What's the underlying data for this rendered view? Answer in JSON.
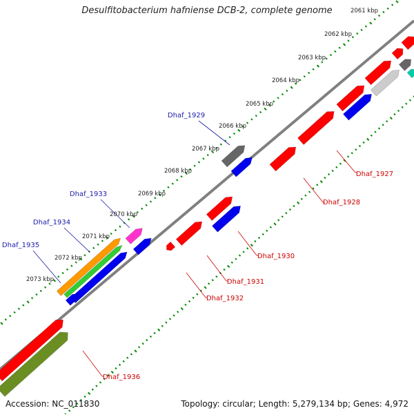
{
  "title": "Desulfitobacterium hafniense DCB-2, complete genome",
  "footer": {
    "accession": "Accession: NC_011830",
    "summary": "Topology: circular; Length: 5,279,134 bp; Genes: 4,972"
  },
  "kbp_ticks": [
    {
      "label": "2061 kbp"
    },
    {
      "label": "2062 kbp"
    },
    {
      "label": "2063 kbp"
    },
    {
      "label": "2064 kbp"
    },
    {
      "label": "2065 kbp"
    },
    {
      "label": "2066 kbp"
    },
    {
      "label": "2067 kbp"
    },
    {
      "label": "2068 kbp"
    },
    {
      "label": "2069 kbp"
    },
    {
      "label": "2070 kbp"
    },
    {
      "label": "2071 kbp"
    },
    {
      "label": "2072 kbp"
    },
    {
      "label": "2073 kbp"
    }
  ],
  "gene_labels_upper": [
    "Dhaf_1929",
    "Dhaf_1933",
    "Dhaf_1934",
    "Dhaf_1935"
  ],
  "gene_labels_lower": [
    "Dhaf_1927",
    "Dhaf_1928",
    "Dhaf_1930",
    "Dhaf_1931",
    "Dhaf_1932",
    "Dhaf_1936"
  ],
  "colors": {
    "upper_label": "#1a1aa8",
    "lower_label": "#cc0000",
    "red": "#ff0000",
    "blue": "#0000ee",
    "gray": "#666666",
    "lightgray": "#cccccc",
    "magenta": "#ff33cc",
    "orange": "#ff9900",
    "green": "#33cc33",
    "olive": "#6b8e23",
    "teal": "#00ccaa",
    "dot_green": "#008800",
    "backbone": "#808080"
  }
}
